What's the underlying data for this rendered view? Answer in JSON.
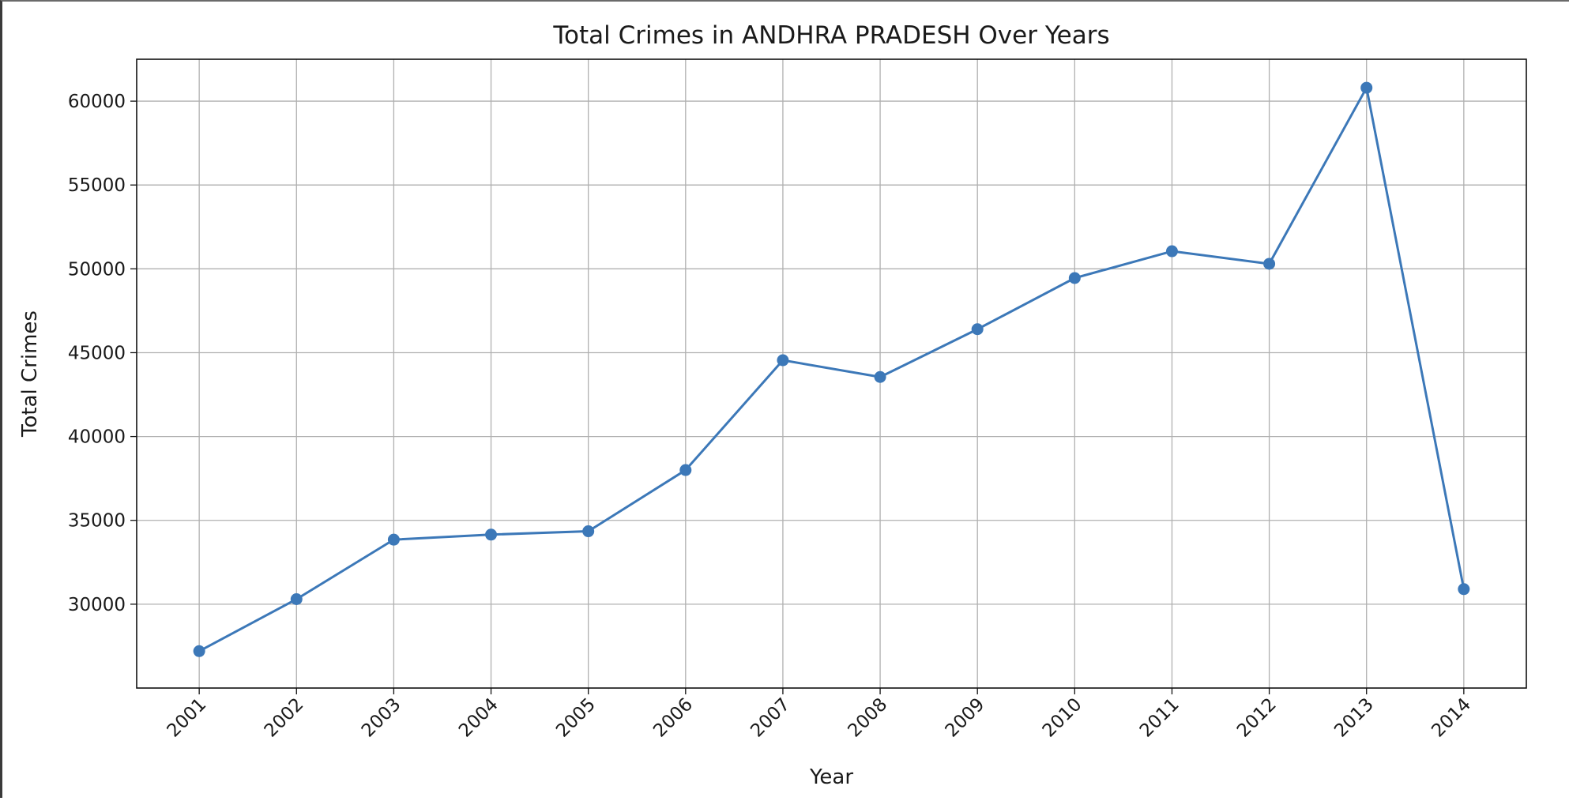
{
  "chart_data": {
    "type": "line",
    "title": "Total Crimes in ANDHRA PRADESH Over Years",
    "xlabel": "Year",
    "ylabel": "Total Crimes",
    "categories": [
      "2001",
      "2002",
      "2003",
      "2004",
      "2005",
      "2006",
      "2007",
      "2008",
      "2009",
      "2010",
      "2011",
      "2012",
      "2013",
      "2014"
    ],
    "series": [
      {
        "values": [
          27200,
          30300,
          33850,
          34150,
          34350,
          38000,
          44550,
          43550,
          46400,
          49450,
          51050,
          50300,
          60800,
          30900
        ],
        "color": "#3c78b8",
        "marker": "circle"
      }
    ],
    "y_ticks": [
      30000,
      35000,
      40000,
      45000,
      50000,
      55000,
      60000
    ],
    "ylim": [
      25000,
      62500
    ],
    "grid": true,
    "x_tick_rotation": "45deg"
  }
}
